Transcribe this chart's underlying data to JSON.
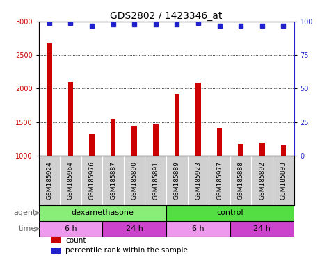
{
  "title": "GDS2802 / 1423346_at",
  "samples": [
    "GSM185924",
    "GSM185964",
    "GSM185976",
    "GSM185887",
    "GSM185890",
    "GSM185891",
    "GSM185889",
    "GSM185923",
    "GSM185977",
    "GSM185888",
    "GSM185892",
    "GSM185893"
  ],
  "counts": [
    2680,
    2100,
    1320,
    1550,
    1440,
    1460,
    1920,
    2090,
    1410,
    1170,
    1200,
    1150
  ],
  "percentile_ranks": [
    99,
    99,
    97,
    98,
    98,
    98,
    98,
    99,
    97,
    97,
    97,
    97
  ],
  "bar_color": "#cc0000",
  "dot_color": "#2222cc",
  "ylim_left": [
    1000,
    3000
  ],
  "ylim_right": [
    0,
    100
  ],
  "yticks_left": [
    1000,
    1500,
    2000,
    2500,
    3000
  ],
  "yticks_right": [
    0,
    25,
    50,
    75,
    100
  ],
  "agent_groups": [
    {
      "label": "dexamethasone",
      "start": 0,
      "end": 6,
      "color": "#88ee77"
    },
    {
      "label": "control",
      "start": 6,
      "end": 12,
      "color": "#55dd44"
    }
  ],
  "time_groups": [
    {
      "label": "6 h",
      "start": 0,
      "end": 3,
      "color": "#ee99ee"
    },
    {
      "label": "24 h",
      "start": 3,
      "end": 6,
      "color": "#cc44cc"
    },
    {
      "label": "6 h",
      "start": 6,
      "end": 9,
      "color": "#ee99ee"
    },
    {
      "label": "24 h",
      "start": 9,
      "end": 12,
      "color": "#cc44cc"
    }
  ],
  "legend_items": [
    {
      "color": "#cc0000",
      "label": "count"
    },
    {
      "color": "#2222cc",
      "label": "percentile rank within the sample"
    }
  ],
  "sample_bg": "#d0d0d0",
  "plot_bg": "#ffffff",
  "title_fontsize": 10,
  "tick_fontsize": 7,
  "label_fontsize": 8,
  "sample_fontsize": 6.5
}
